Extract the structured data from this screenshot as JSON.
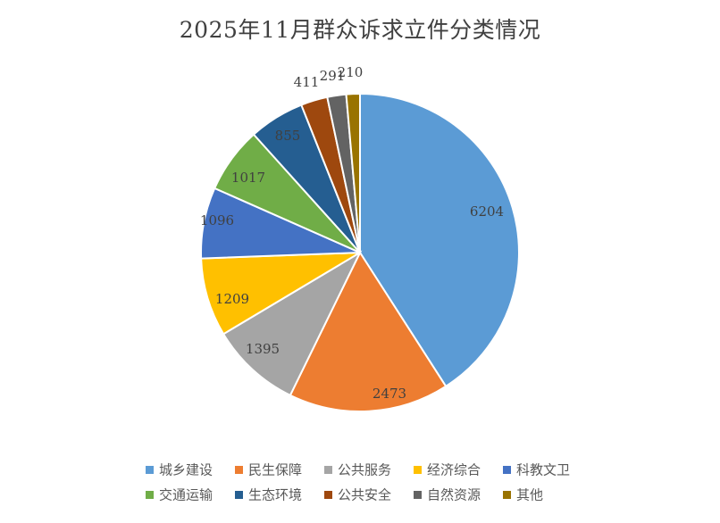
{
  "chart_data": {
    "type": "pie",
    "title": "2025年11月群众诉求立件分类情况",
    "categories": [
      "城乡建设",
      "民生保障",
      "公共服务",
      "经济综合",
      "科教文卫",
      "交通运输",
      "生态环境",
      "公共安全",
      "自然资源",
      "其他"
    ],
    "values": [
      6204,
      2473,
      1395,
      1209,
      1096,
      1017,
      855,
      411,
      291,
      210
    ],
    "colors": [
      "#5B9BD5",
      "#ED7D31",
      "#A5A5A5",
      "#FFC000",
      "#4472C4",
      "#70AD47",
      "#255E91",
      "#9E480E",
      "#636363",
      "#997300"
    ],
    "start_angle": "12 o'clock",
    "direction": "clockwise",
    "legend": "bottom",
    "data_labels": "outside-end for small slices, inside for large"
  }
}
